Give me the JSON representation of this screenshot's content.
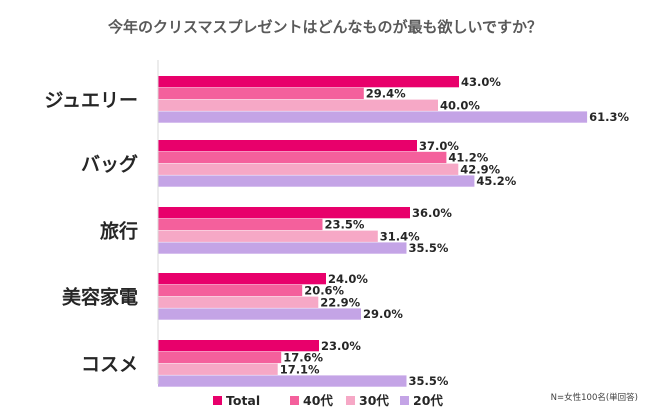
{
  "chart_data": {
    "type": "bar",
    "orientation": "horizontal",
    "title": "今年のクリスマスプレゼントはどんなものが最も欲しいですか？",
    "categories": [
      "ジュエリー",
      "バッグ",
      "旅行",
      "美容家電",
      "コスメ"
    ],
    "series": [
      {
        "name": "Total",
        "color": "#e8006b",
        "values": [
          43.0,
          37.0,
          36.0,
          24.0,
          23.0
        ],
        "labels": [
          "43.0%",
          "37.0%",
          "36.0%",
          "24.0%",
          "23.0%"
        ]
      },
      {
        "name": "40代",
        "color": "#f4609c",
        "values": [
          29.4,
          41.2,
          23.5,
          20.6,
          17.6
        ],
        "labels": [
          "29.4%",
          "41.2%",
          "23.5%",
          "20.6%",
          "17.6%"
        ]
      },
      {
        "name": "30代",
        "color": "#f6a8c6",
        "values": [
          40.0,
          42.9,
          31.4,
          22.9,
          17.1
        ],
        "labels": [
          "40.0%",
          "42.9%",
          "31.4%",
          "22.9%",
          "17.1%"
        ]
      },
      {
        "name": "20代",
        "color": "#c4a4e6",
        "values": [
          61.3,
          45.2,
          35.5,
          29.0,
          35.5
        ],
        "labels": [
          "61.3%",
          "45.2%",
          "35.5%",
          "29.0%",
          "35.5%"
        ]
      }
    ],
    "xlim": [
      0,
      70
    ],
    "xlabel": "",
    "ylabel": "",
    "grid": false,
    "legend": "bottom",
    "note": "N=女性100名(単回答)"
  }
}
